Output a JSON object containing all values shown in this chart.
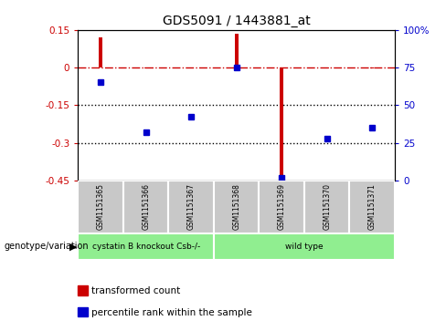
{
  "title": "GDS5091 / 1443881_at",
  "samples": [
    "GSM1151365",
    "GSM1151366",
    "GSM1151367",
    "GSM1151368",
    "GSM1151369",
    "GSM1151370",
    "GSM1151371"
  ],
  "transformed_count": [
    0.12,
    -0.005,
    -0.005,
    0.135,
    -0.46,
    -0.005,
    -0.005
  ],
  "percentile_rank": [
    65,
    32,
    42,
    75,
    2,
    28,
    35
  ],
  "ylim_left": [
    -0.45,
    0.15
  ],
  "ylim_right": [
    0,
    100
  ],
  "yticks_left": [
    0.15,
    0,
    -0.15,
    -0.3,
    -0.45
  ],
  "yticks_right": [
    100,
    75,
    50,
    25,
    0
  ],
  "bar_color": "#CC0000",
  "scatter_color": "#0000CC",
  "dashed_line_color": "#CC0000",
  "dotted_line_color": "#000000",
  "tick_label_color_left": "#CC0000",
  "tick_label_color_right": "#0000CC",
  "legend_items": [
    "transformed count",
    "percentile rank within the sample"
  ],
  "legend_colors": [
    "#CC0000",
    "#0000CC"
  ],
  "genotype_label": "genotype/variation",
  "group_labels": [
    "cystatin B knockout Csb-/-",
    "wild type"
  ],
  "group_starts": [
    0,
    3
  ],
  "group_ends": [
    3,
    7
  ],
  "group_colors": [
    "#90EE90",
    "#90EE90"
  ],
  "sample_box_color": "#C8C8C8",
  "bar_width": 0.08
}
